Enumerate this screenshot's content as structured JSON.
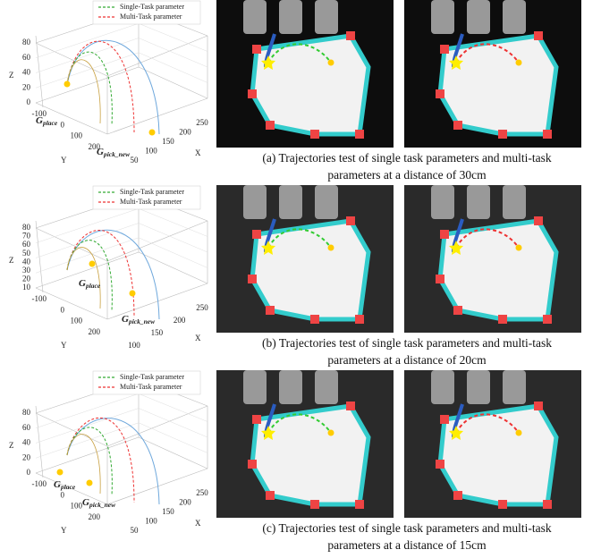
{
  "rows": [
    {
      "legend": [
        "Single-Task parameter",
        "Multi-Task parameter"
      ],
      "axes": {
        "z": "Z",
        "y": "Y",
        "x": "X"
      },
      "zticks": [
        0,
        20,
        40,
        60,
        80
      ],
      "yticks": [
        -100,
        0,
        100,
        200
      ],
      "xticks": [
        50,
        100,
        150,
        200,
        250
      ],
      "points": [
        {
          "main": "G",
          "sub": "place"
        },
        {
          "main": "G",
          "sub": "pick_new"
        }
      ],
      "caption": [
        "(a) Trajectories test of single task parameters and multi-task",
        "parameters at a distance of 30cm"
      ]
    },
    {
      "legend": [
        "Single-Task parameter",
        "Multi-Task parameter"
      ],
      "axes": {
        "z": "Z",
        "y": "Y",
        "x": "X"
      },
      "zticks": [
        10,
        20,
        30,
        40,
        50,
        60,
        70,
        80
      ],
      "yticks": [
        -100,
        0,
        100,
        200
      ],
      "xticks": [
        100,
        150,
        200,
        250
      ],
      "points": [
        {
          "main": "G",
          "sub": "place"
        },
        {
          "main": "G",
          "sub": "pick_new"
        }
      ],
      "caption": [
        "(b) Trajectories test of single task parameters and multi-task",
        "parameters at a distance of 20cm"
      ]
    },
    {
      "legend": [
        "Single-Task parameter",
        "Multi-Task parameter"
      ],
      "axes": {
        "z": "Z",
        "y": "Y",
        "x": "X"
      },
      "zticks": [
        0,
        20,
        40,
        60,
        80
      ],
      "yticks": [
        -100,
        0,
        100,
        200
      ],
      "xticks": [
        50,
        100,
        150,
        200,
        250
      ],
      "points": [
        {
          "main": "G",
          "sub": "place"
        },
        {
          "main": "G",
          "sub": "pick_new"
        }
      ],
      "caption": [
        "(c) Trajectories test of single task parameters and multi-task",
        "parameters at a distance of 15cm"
      ]
    }
  ]
}
